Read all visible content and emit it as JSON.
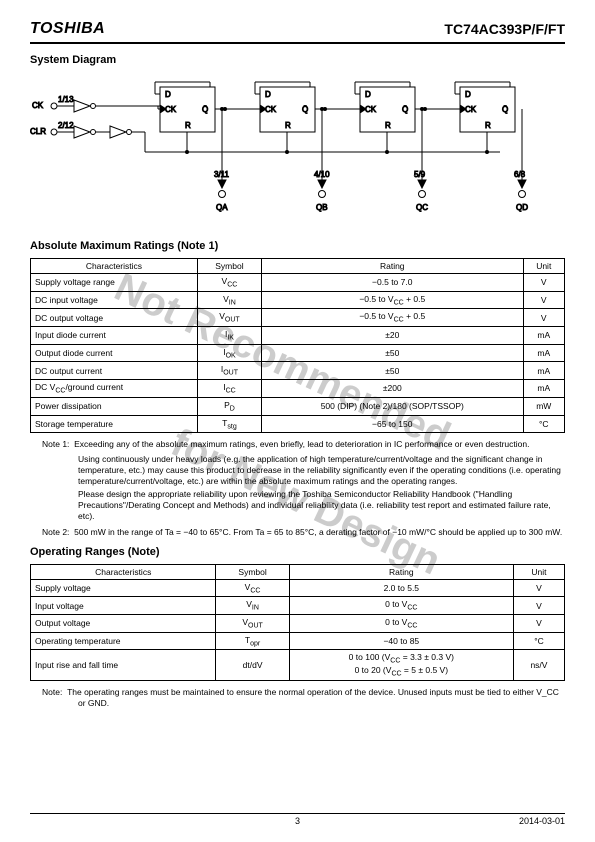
{
  "header": {
    "logo": "TOSHIBA",
    "part": "TC74AC393P/F/FT"
  },
  "sections": {
    "system_diagram": "System Diagram",
    "abs_max": "Absolute Maximum Ratings (Note 1)",
    "op_ranges": "Operating Ranges (Note)"
  },
  "diagram": {
    "ck_label": "CK",
    "ck_pins": "1/13",
    "clr_label": "CLR",
    "clr_pins": "2/12",
    "ff_D": "D",
    "ff_CK": "CK",
    "ff_Q": "Q",
    "ff_Qbar": "Q̄",
    "ff_R": "R",
    "outs": [
      {
        "pin": "3/11",
        "name": "QA"
      },
      {
        "pin": "4/10",
        "name": "QB"
      },
      {
        "pin": "5/9",
        "name": "QC"
      },
      {
        "pin": "6/8",
        "name": "QD"
      }
    ]
  },
  "abs_table": {
    "headers": [
      "Characteristics",
      "Symbol",
      "Rating",
      "Unit"
    ],
    "rows": [
      [
        "Supply voltage range",
        "V_CC",
        "−0.5 to 7.0",
        "V"
      ],
      [
        "DC input voltage",
        "V_IN",
        "−0.5 to V_CC + 0.5",
        "V"
      ],
      [
        "DC output voltage",
        "V_OUT",
        "−0.5 to V_CC + 0.5",
        "V"
      ],
      [
        "Input diode current",
        "I_IK",
        "±20",
        "mA"
      ],
      [
        "Output diode current",
        "I_OK",
        "±50",
        "mA"
      ],
      [
        "DC output current",
        "I_OUT",
        "±50",
        "mA"
      ],
      [
        "DC V_CC/ground current",
        "I_CC",
        "±200",
        "mA"
      ],
      [
        "Power dissipation",
        "P_D",
        "500 (DIP) (Note 2)/180 (SOP/TSSOP)",
        "mW"
      ],
      [
        "Storage temperature",
        "T_stg",
        "−65 to 150",
        "°C"
      ]
    ]
  },
  "notes": {
    "n1_label": "Note 1:",
    "n1_a": "Exceeding any of the absolute maximum ratings, even briefly, lead to deterioration in IC performance or even destruction.",
    "n1_b": "Using continuously under heavy loads (e.g. the application of high temperature/current/voltage and the significant change in temperature, etc.) may cause this product to decrease in the reliability significantly even if the operating conditions (i.e. operating temperature/current/voltage, etc.) are within the absolute maximum ratings and the operating ranges.",
    "n1_c": "Please design the appropriate reliability upon reviewing the Toshiba Semiconductor Reliability Handbook (\"Handling Precautions\"/Derating Concept and Methods) and individual reliability data (i.e. reliability test report and estimated failure rate, etc).",
    "n2_label": "Note 2:",
    "n2": "500 mW in the range of Ta = −40 to 65°C. From Ta = 65 to 85°C, a derating factor of −10 mW/°C should be applied up to 300 mW.",
    "op_label": "Note:",
    "op": "The operating ranges must be maintained to ensure the normal operation of the device. Unused inputs must be tied to either V_CC or GND."
  },
  "op_table": {
    "headers": [
      "Characteristics",
      "Symbol",
      "Rating",
      "Unit"
    ],
    "rows": [
      [
        "Supply voltage",
        "V_CC",
        "2.0 to 5.5",
        "V"
      ],
      [
        "Input voltage",
        "V_IN",
        "0 to V_CC",
        "V"
      ],
      [
        "Output voltage",
        "V_OUT",
        "0 to V_CC",
        "V"
      ],
      [
        "Operating temperature",
        "T_opr",
        "−40 to 85",
        "°C"
      ],
      [
        "Input rise and fall time",
        "dt/dV",
        "0 to 100 (V_CC = 3.3 ± 0.3 V)\n0 to 20 (V_CC = 5 ± 0.5 V)",
        "ns/V"
      ]
    ]
  },
  "footer": {
    "page": "3",
    "date": "2014-03-01"
  },
  "watermark": {
    "line1": "Not Recommended",
    "line2": "for New Design"
  }
}
